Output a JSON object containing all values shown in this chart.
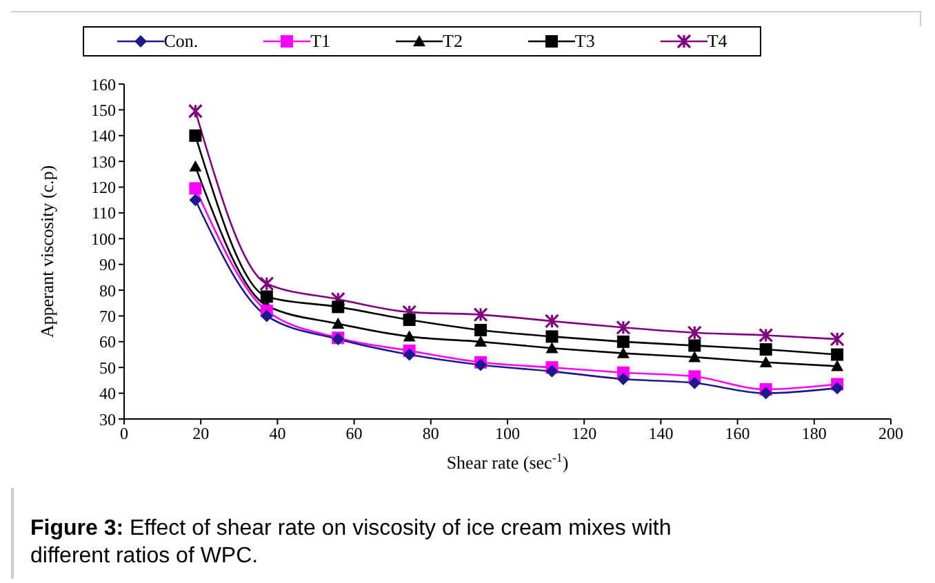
{
  "chart_data": {
    "type": "line",
    "xlabel": "Shear rate (sec$^{-1}$)",
    "ylabel": "Apperant viscosity (c.p)",
    "x": [
      18.6,
      37.2,
      55.8,
      74.4,
      93,
      111.6,
      130.2,
      148.8,
      167.4,
      186
    ],
    "xlim": [
      0,
      200
    ],
    "xticks": [
      0,
      20,
      40,
      60,
      80,
      100,
      120,
      140,
      160,
      180,
      200
    ],
    "ylim": [
      30,
      160
    ],
    "yticks": [
      30,
      40,
      50,
      60,
      70,
      80,
      90,
      100,
      110,
      120,
      130,
      140,
      150,
      160
    ],
    "grid": false,
    "legend": "top",
    "line_style": "solid",
    "series": [
      {
        "name": "Con.",
        "color": "#1a1a8c",
        "marker": "diamond",
        "values": [
          115,
          70,
          61,
          55,
          51,
          48.5,
          45.5,
          44,
          40,
          42
        ]
      },
      {
        "name": "T1",
        "color": "#ff00ff",
        "marker": "square",
        "values": [
          119.5,
          72,
          61.5,
          56.5,
          52,
          50,
          48,
          46.5,
          41.5,
          43.5
        ]
      },
      {
        "name": "T2",
        "color": "#000000",
        "marker": "triangle",
        "values": [
          128,
          74,
          67,
          62,
          60,
          57.5,
          55.5,
          54,
          52,
          50.5
        ]
      },
      {
        "name": "T3",
        "color": "#000000",
        "marker": "square",
        "values": [
          140,
          77.5,
          73.5,
          68.5,
          64.5,
          62,
          60,
          58.5,
          57,
          55
        ]
      },
      {
        "name": "T4",
        "color": "#800080",
        "marker": "cross",
        "values": [
          149.5,
          82.5,
          76.5,
          71.5,
          70.5,
          68,
          65.5,
          63.5,
          62.5,
          61
        ]
      }
    ],
    "annotations": [
      "Figure 3: Effect of shear rate on viscosity of ice cream mixes with different ratios of WPC."
    ]
  }
}
